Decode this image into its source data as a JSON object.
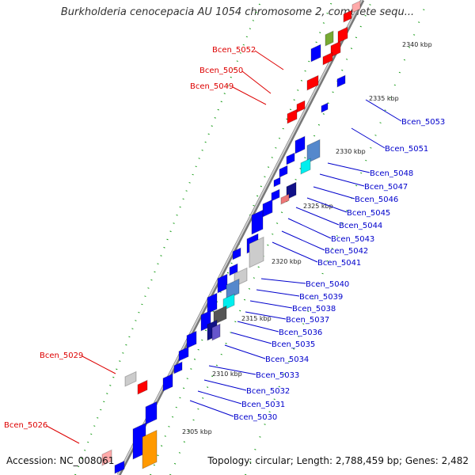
{
  "title": "Burkholderia cenocepacia AU 1054 chromosome 2, complete sequ...",
  "accession": "Accession: NC_008061",
  "summary": "Topology: circular; Length: 2,788,459 bp; Genes: 2,482",
  "colors": {
    "label_left": "#dd0000",
    "label_right": "#0000cc",
    "forward_gene": "#ff0000",
    "reverse_gene": "#0000ff",
    "tick": "#119911",
    "axis": "#888888"
  },
  "kbp_ticks": [
    "2305 kbp",
    "2310 kbp",
    "2315 kbp",
    "2320 kbp",
    "2325 kbp",
    "2330 kbp",
    "2335 kbp",
    "2340 kbp"
  ],
  "left_labels": [
    "Bcen_5052",
    "Bcen_5050",
    "Bcen_5049",
    "Bcen_5029",
    "Bcen_5026"
  ],
  "right_labels": [
    "Bcen_5053",
    "Bcen_5051",
    "Bcen_5048",
    "Bcen_5047",
    "Bcen_5046",
    "Bcen_5045",
    "Bcen_5044",
    "Bcen_5043",
    "Bcen_5042",
    "Bcen_5041",
    "Bcen_5040",
    "Bcen_5039",
    "Bcen_5038",
    "Bcen_5037",
    "Bcen_5036",
    "Bcen_5035",
    "Bcen_5034",
    "Bcen_5033",
    "Bcen_5032",
    "Bcen_5031",
    "Bcen_5030"
  ]
}
